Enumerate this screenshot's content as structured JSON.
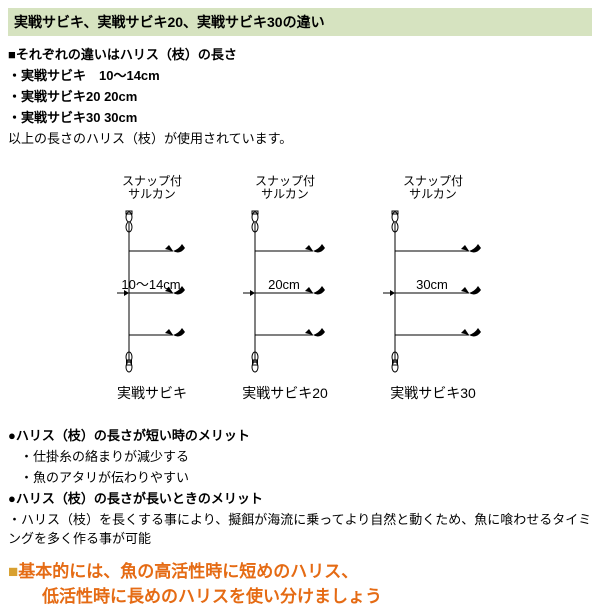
{
  "banner": "実戦サビキ、実戦サビキ20、実戦サビキ30の違い",
  "intro": {
    "heading": "■それぞれの違いはハリス（枝）の長さ",
    "lines": [
      "・実戦サビキ　10～14cm",
      "・実戦サビキ20  20cm",
      "・実戦サビキ30  30cm",
      "以上の長さのハリス（枝）が使用されています。"
    ]
  },
  "diagrams": {
    "snap_label_line1": "スナップ付",
    "snap_label_line2": "サルカン",
    "rigs": [
      {
        "name": "実戦サビキ",
        "branch_label": "10～14cm",
        "branch_len": 44
      },
      {
        "name": "実戦サビキ20",
        "branch_label": "20cm",
        "branch_len": 58
      },
      {
        "name": "実戦サビキ30",
        "branch_label": "30cm",
        "branch_len": 74
      }
    ],
    "svg": {
      "stroke": "#000000",
      "height": 170
    }
  },
  "merits": {
    "short_title": "●ハリス（枝）の長さが短い時のメリット",
    "short_items": [
      "・仕掛糸の絡まりが減少する",
      "・魚のアタリが伝わりやすい"
    ],
    "long_title": "●ハリス（枝）の長さが長いときのメリット",
    "long_items": [
      "・ハリス（枝）を長くする事により、擬餌が海流に乗ってより自然と動くため、魚に喰わせるタイミングを多く作る事が可能"
    ]
  },
  "conclusion": {
    "marker": "■",
    "line1": "基本的には、魚の高活性時に短めのハリス、",
    "line2": "低活性時に長めのハリスを使い分けましょう"
  }
}
